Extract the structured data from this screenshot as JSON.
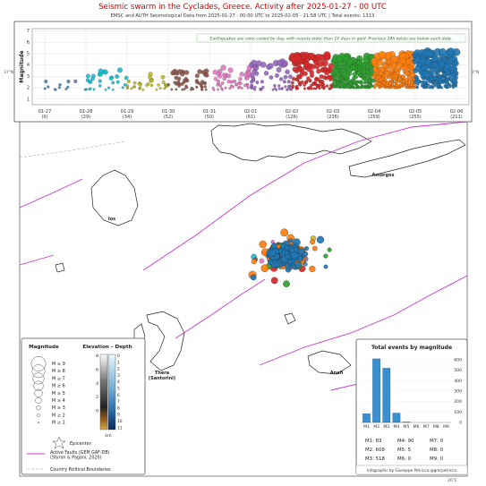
{
  "header": {
    "title": "Seismic swarm in the Cyclades, Greece. Activity after 2025-01-27 - 00 UTC",
    "subtitle": "EMSC and AUTH Seismological Data from 2025-01-27 - 00:00 UTC to 2025-02-05 - 21:58 UTC | Total events: 1313"
  },
  "corner_labels": {
    "lon_top_right": "26°E",
    "lon_bottom_right": "26°E",
    "lat_left": "37°N",
    "lat_right": "37°N"
  },
  "map": {
    "islands": [
      "Amorgos",
      "Ios",
      "Thera\n(Santorini)",
      "Anafi"
    ],
    "fault_color": "#cc33cc",
    "border_color": "#999999"
  },
  "colors": {
    "day_palette": [
      "#4a7fb5",
      "#17becf",
      "#bcbd22",
      "#8c564b",
      "#e377c2",
      "#7f7f7f",
      "#9467bd",
      "#d62728",
      "#2ca02c",
      "#ff7f0e",
      "#1f77b4"
    ],
    "old_events": "#ffd700"
  },
  "chart_data": [
    {
      "type": "scatter",
      "title": "",
      "ylabel": "Magnitude",
      "ylim": [
        0.5,
        7.2
      ],
      "yticks": [
        1,
        2,
        3,
        4,
        5,
        6,
        7
      ],
      "grid": true,
      "note": "Earthquakes are color-coded by day, with events older than 10 days in gold. Previous 24h totals are below each date.",
      "x_ticks": [
        {
          "date": "01-27",
          "count": "(0)"
        },
        {
          "date": "01-28",
          "count": "(29)"
        },
        {
          "date": "01-29",
          "count": "(34)"
        },
        {
          "date": "01-30",
          "count": "(52)"
        },
        {
          "date": "01-31",
          "count": "(50)"
        },
        {
          "date": "02-01",
          "count": "(61)"
        },
        {
          "date": "02-02",
          "count": "(126)"
        },
        {
          "date": "02-03",
          "count": "(236)"
        },
        {
          "date": "02-04",
          "count": "(259)"
        },
        {
          "date": "02-05",
          "count": "(255)"
        },
        {
          "date": "02-06",
          "count": "(211)"
        }
      ],
      "daily_events": [
        {
          "day": "01-27",
          "count": 12,
          "mag_range": [
            1.8,
            2.6
          ],
          "color": "#4a7fb5"
        },
        {
          "day": "01-28",
          "count": 29,
          "mag_range": [
            1.8,
            3.6
          ],
          "color": "#17becf"
        },
        {
          "day": "01-29",
          "count": 34,
          "mag_range": [
            1.8,
            3.2
          ],
          "color": "#bcbd22"
        },
        {
          "day": "01-30",
          "count": 52,
          "mag_range": [
            1.8,
            3.5
          ],
          "color": "#8c564b"
        },
        {
          "day": "01-31",
          "count": 50,
          "mag_range": [
            1.8,
            3.8
          ],
          "color": "#e377c2"
        },
        {
          "day": "02-01",
          "count": 61,
          "mag_range": [
            1.8,
            4.4
          ],
          "color": "#9467bd"
        },
        {
          "day": "02-02",
          "count": 126,
          "mag_range": [
            1.9,
            4.9
          ],
          "color": "#d62728"
        },
        {
          "day": "02-03",
          "count": 236,
          "mag_range": [
            2.0,
            4.8
          ],
          "color": "#2ca02c"
        },
        {
          "day": "02-04",
          "count": 259,
          "mag_range": [
            2.0,
            5.0
          ],
          "color": "#ff7f0e"
        },
        {
          "day": "02-05",
          "count": 255,
          "mag_range": [
            2.0,
            5.2
          ],
          "color": "#1f77b4"
        }
      ]
    },
    {
      "type": "bar",
      "title": "Total events by magnitude",
      "categories": [
        "M1",
        "M2",
        "M3",
        "M4",
        "M5",
        "M6",
        "M7",
        "M8",
        "M9"
      ],
      "values": [
        83,
        608,
        518,
        90,
        5,
        0,
        0,
        0,
        0
      ],
      "ylim": [
        0,
        650
      ],
      "yticks": [
        0,
        100,
        200,
        300,
        400,
        500,
        600
      ],
      "bar_color": "#3a8fd0",
      "summary": [
        [
          "M1: 83",
          "M4: 90",
          "M7: 0"
        ],
        [
          "M2: 608",
          "M5: 5",
          "M8: 0"
        ],
        [
          "M3: 518",
          "M6: 0",
          "M9: 0"
        ]
      ]
    }
  ],
  "legend": {
    "magnitude_title": "Magnitude",
    "magnitude_entries": [
      "M ≥ 9",
      "M ≥ 8",
      "M ≥ 7",
      "M ≥ 6",
      "M ≥ 5",
      "M ≥ 4",
      "M ≥ 3",
      "M ≥ 2",
      "M ≥ 1"
    ],
    "elevation_title": "Elevation – Depth",
    "elevation_ticks": [
      "8",
      "6",
      "4",
      "2",
      "0"
    ],
    "depth_ticks": [
      "0",
      "1",
      "2",
      "3",
      "4",
      "5",
      "6",
      "7",
      "8",
      "9",
      "10",
      "11"
    ],
    "elevation_unit": "km",
    "epicenter_label": "Epicenter",
    "faults_label": "Active Faults (GEM GAF-DB)\n(Styron & Pagani, 2020)",
    "borders_label": "Country Political Boundaries"
  },
  "credit": "Infographic by Giuseppe Petricca   @gmrpetricca"
}
